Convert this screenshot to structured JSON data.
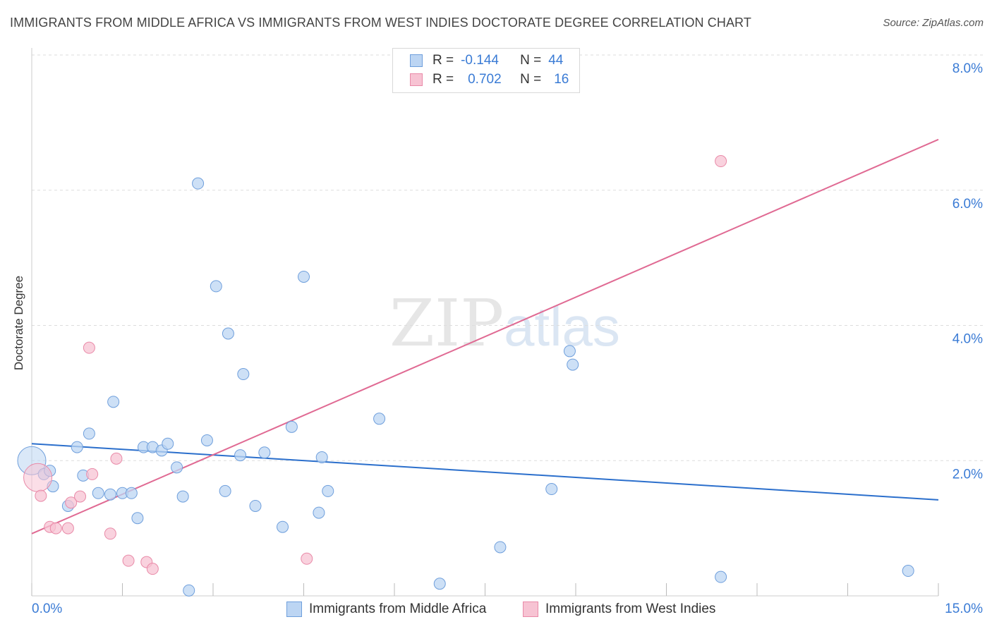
{
  "title": "IMMIGRANTS FROM MIDDLE AFRICA VS IMMIGRANTS FROM WEST INDIES DOCTORATE DEGREE CORRELATION CHART",
  "source": "Source: ZipAtlas.com",
  "watermark": {
    "zip": "ZIP",
    "atlas": "atlas"
  },
  "legend": {
    "r_label": "R =",
    "n_label": "N =",
    "series1": {
      "r": "-0.144",
      "n": "44"
    },
    "series2": {
      "r": "0.702",
      "n": "16"
    }
  },
  "colors": {
    "blue_fill": "#bcd5f3",
    "blue_stroke": "#6f9fdc",
    "blue_line": "#2b6fcc",
    "pink_fill": "#f7c3d3",
    "pink_stroke": "#e98aa8",
    "pink_line": "#e06a93",
    "tick_text": "#3a7bd5",
    "grid": "#dddddd"
  },
  "chart_data": {
    "type": "scatter",
    "title": "IMMIGRANTS FROM MIDDLE AFRICA VS IMMIGRANTS FROM WEST INDIES DOCTORATE DEGREE CORRELATION CHART",
    "xlabel": "",
    "ylabel": "Doctorate Degree",
    "xlim": [
      0,
      15
    ],
    "ylim": [
      0,
      8
    ],
    "x_tick_labels": [
      "0.0%",
      "15.0%"
    ],
    "y_ticks": [
      2,
      4,
      6,
      8
    ],
    "y_tick_labels": [
      "2.0%",
      "4.0%",
      "6.0%",
      "8.0%"
    ],
    "grid": true,
    "legend_position": "top-center",
    "series": [
      {
        "name": "Immigrants from Middle Africa",
        "color": "#6f9fdc",
        "r": -0.144,
        "n": 44,
        "trend": {
          "x": [
            0,
            15
          ],
          "y": [
            2.25,
            1.42
          ]
        },
        "points": [
          {
            "x": 0.0,
            "y": 2.0,
            "big": true
          },
          {
            "x": 0.2,
            "y": 1.8
          },
          {
            "x": 0.3,
            "y": 1.85
          },
          {
            "x": 0.35,
            "y": 1.62
          },
          {
            "x": 0.6,
            "y": 1.33
          },
          {
            "x": 0.75,
            "y": 2.2
          },
          {
            "x": 0.85,
            "y": 1.78
          },
          {
            "x": 0.95,
            "y": 2.4
          },
          {
            "x": 1.1,
            "y": 1.52
          },
          {
            "x": 1.3,
            "y": 1.5
          },
          {
            "x": 1.35,
            "y": 2.87
          },
          {
            "x": 1.5,
            "y": 1.52
          },
          {
            "x": 1.65,
            "y": 1.52
          },
          {
            "x": 1.75,
            "y": 1.15
          },
          {
            "x": 1.85,
            "y": 2.2
          },
          {
            "x": 2.0,
            "y": 2.2
          },
          {
            "x": 2.15,
            "y": 2.15
          },
          {
            "x": 2.25,
            "y": 2.25
          },
          {
            "x": 2.4,
            "y": 1.9
          },
          {
            "x": 2.5,
            "y": 1.47
          },
          {
            "x": 2.6,
            "y": 0.08
          },
          {
            "x": 2.75,
            "y": 6.1
          },
          {
            "x": 2.9,
            "y": 2.3
          },
          {
            "x": 3.05,
            "y": 4.58
          },
          {
            "x": 3.2,
            "y": 1.55
          },
          {
            "x": 3.25,
            "y": 3.88
          },
          {
            "x": 3.45,
            "y": 2.08
          },
          {
            "x": 3.5,
            "y": 3.28
          },
          {
            "x": 3.7,
            "y": 1.33
          },
          {
            "x": 3.85,
            "y": 2.12
          },
          {
            "x": 4.15,
            "y": 1.02
          },
          {
            "x": 4.3,
            "y": 2.5
          },
          {
            "x": 4.5,
            "y": 4.72
          },
          {
            "x": 4.75,
            "y": 1.23
          },
          {
            "x": 4.8,
            "y": 2.05
          },
          {
            "x": 4.9,
            "y": 1.55
          },
          {
            "x": 5.75,
            "y": 2.62
          },
          {
            "x": 6.75,
            "y": 0.18
          },
          {
            "x": 7.75,
            "y": 0.72
          },
          {
            "x": 8.6,
            "y": 1.58
          },
          {
            "x": 8.9,
            "y": 3.62
          },
          {
            "x": 8.95,
            "y": 3.42
          },
          {
            "x": 11.4,
            "y": 0.28
          },
          {
            "x": 14.5,
            "y": 0.37
          }
        ]
      },
      {
        "name": "Immigrants from West Indies",
        "color": "#e98aa8",
        "r": 0.702,
        "n": 16,
        "trend": {
          "x": [
            0,
            15
          ],
          "y": [
            0.92,
            6.75
          ]
        },
        "points": [
          {
            "x": 0.1,
            "y": 1.75,
            "big": true
          },
          {
            "x": 0.15,
            "y": 1.48
          },
          {
            "x": 0.3,
            "y": 1.02
          },
          {
            "x": 0.4,
            "y": 1.0
          },
          {
            "x": 0.6,
            "y": 1.0
          },
          {
            "x": 0.65,
            "y": 1.38
          },
          {
            "x": 0.8,
            "y": 1.47
          },
          {
            "x": 0.95,
            "y": 3.67
          },
          {
            "x": 1.0,
            "y": 1.8
          },
          {
            "x": 1.3,
            "y": 0.92
          },
          {
            "x": 1.4,
            "y": 2.03
          },
          {
            "x": 1.6,
            "y": 0.52
          },
          {
            "x": 1.9,
            "y": 0.5
          },
          {
            "x": 2.0,
            "y": 0.4
          },
          {
            "x": 4.55,
            "y": 0.55
          },
          {
            "x": 11.4,
            "y": 6.43
          }
        ]
      }
    ]
  }
}
